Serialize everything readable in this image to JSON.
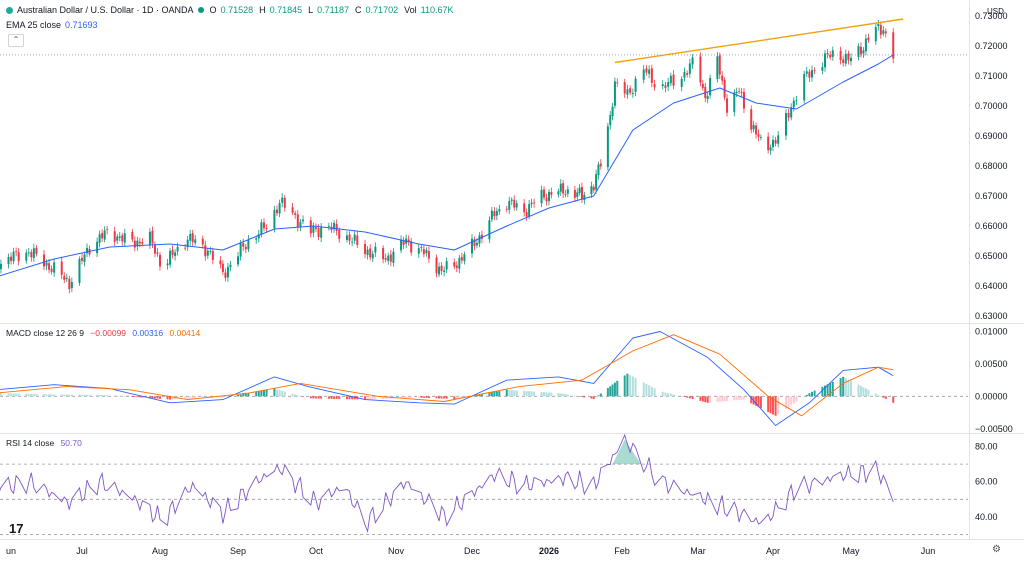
{
  "header": {
    "symbol_title": "Australian Dollar / U.S. Dollar · 1D · OANDA",
    "open_label": "O",
    "open": "0.71528",
    "high_label": "H",
    "high": "0.71845",
    "low_label": "L",
    "low": "0.71187",
    "close_label": "C",
    "close": "0.71702",
    "vol_label": "Vol",
    "vol": "110.67K",
    "ema_label": "EMA 25 close",
    "ema_value": "0.71693"
  },
  "currency": "USD",
  "colors": {
    "up": "#089981",
    "down": "#f23645",
    "ema": "#2962ff",
    "trendline": "#f0a30a",
    "macd": "#2962ff",
    "signal": "#ff6d00",
    "rsi": "#7e57c2"
  },
  "macd_title": {
    "label": "MACD close 12 26 9",
    "hist": "−0.00099",
    "macd": "0.00316",
    "signal": "0.00414"
  },
  "rsi_title": {
    "label": "RSI 14 close",
    "value": "50.70"
  },
  "chart_data": [
    {
      "type": "candlestick",
      "x_ticks": [
        "un",
        "Jul",
        "Aug",
        "Sep",
        "Oct",
        "Nov",
        "Dec",
        "2026",
        "Feb",
        "Mar",
        "Apr",
        "May",
        "Jun"
      ],
      "y_ticks": [
        "0.73000",
        "0.72000",
        "0.71000",
        "0.70000",
        "0.69000",
        "0.68000",
        "0.67000",
        "0.66000",
        "0.65000",
        "0.64000",
        "0.63000"
      ],
      "ylim": [
        0.628,
        0.732
      ],
      "last_price_line": 0.71702,
      "close_path": [
        [
          "2025-05-28",
          0.6475
        ],
        [
          "2025-06-10",
          0.6515
        ],
        [
          "2025-06-20",
          0.6455
        ],
        [
          "2025-06-26",
          0.641
        ],
        [
          "2025-07-05",
          0.6545
        ],
        [
          "2025-07-12",
          0.658
        ],
        [
          "2025-07-20",
          0.6545
        ],
        [
          "2025-07-28",
          0.6555
        ],
        [
          "2025-08-02",
          0.6465
        ],
        [
          "2025-08-12",
          0.656
        ],
        [
          "2025-08-20",
          0.652
        ],
        [
          "2025-08-26",
          0.644
        ],
        [
          "2025-09-05",
          0.655
        ],
        [
          "2025-09-12",
          0.66
        ],
        [
          "2025-09-17",
          0.668
        ],
        [
          "2025-09-22",
          0.664
        ],
        [
          "2025-09-29",
          0.658
        ],
        [
          "2025-10-05",
          0.66
        ],
        [
          "2025-10-12",
          0.657
        ],
        [
          "2025-10-20",
          0.652
        ],
        [
          "2025-10-28",
          0.649
        ],
        [
          "2025-11-05",
          0.655
        ],
        [
          "2025-11-12",
          0.651
        ],
        [
          "2025-11-19",
          0.645
        ],
        [
          "2025-11-24",
          0.647
        ],
        [
          "2025-12-02",
          0.654
        ],
        [
          "2025-12-10",
          0.664
        ],
        [
          "2025-12-15",
          0.668
        ],
        [
          "2025-12-22",
          0.665
        ],
        [
          "2025-12-29",
          0.67
        ],
        [
          "2026-01-08",
          0.672
        ],
        [
          "2026-01-15",
          0.67
        ],
        [
          "2026-01-20",
          0.674
        ],
        [
          "2026-01-24",
          0.683
        ],
        [
          "2026-01-29",
          0.707
        ],
        [
          "2026-02-03",
          0.704
        ],
        [
          "2026-02-09",
          0.712
        ],
        [
          "2026-02-15",
          0.706
        ],
        [
          "2026-02-22",
          0.709
        ],
        [
          "2026-02-28",
          0.715
        ],
        [
          "2026-03-04",
          0.703
        ],
        [
          "2026-03-09",
          0.715
        ],
        [
          "2026-03-13",
          0.7
        ],
        [
          "2026-03-18",
          0.705
        ],
        [
          "2026-03-23",
          0.694
        ],
        [
          "2026-03-28",
          0.686
        ],
        [
          "2026-04-03",
          0.689
        ],
        [
          "2026-04-08",
          0.7
        ],
        [
          "2026-04-13",
          0.709
        ],
        [
          "2026-04-20",
          0.715
        ],
        [
          "2026-04-25",
          0.718
        ],
        [
          "2026-04-30",
          0.715
        ],
        [
          "2026-05-06",
          0.72
        ],
        [
          "2026-05-10",
          0.725
        ],
        [
          "2026-05-14",
          0.726
        ],
        [
          "2026-05-18",
          0.717
        ]
      ],
      "ema_path": [
        [
          "2025-05-28",
          0.643
        ],
        [
          "2025-06-20",
          0.649
        ],
        [
          "2025-07-12",
          0.653
        ],
        [
          "2025-08-05",
          0.654
        ],
        [
          "2025-08-26",
          0.652
        ],
        [
          "2025-09-15",
          0.659
        ],
        [
          "2025-09-30",
          0.66
        ],
        [
          "2025-10-20",
          0.658
        ],
        [
          "2025-11-10",
          0.654
        ],
        [
          "2025-11-24",
          0.652
        ],
        [
          "2025-12-15",
          0.66
        ],
        [
          "2026-01-01",
          0.666
        ],
        [
          "2026-01-20",
          0.67
        ],
        [
          "2026-02-05",
          0.692
        ],
        [
          "2026-02-20",
          0.701
        ],
        [
          "2026-03-10",
          0.706
        ],
        [
          "2026-03-25",
          0.701
        ],
        [
          "2026-04-10",
          0.699
        ],
        [
          "2026-04-28",
          0.708
        ],
        [
          "2026-05-12",
          0.714
        ],
        [
          "2026-05-18",
          0.717
        ]
      ],
      "trendline": [
        [
          "2026-01-29",
          0.7145
        ],
        [
          "2026-05-22",
          0.729
        ]
      ]
    },
    {
      "type": "line",
      "name": "MACD",
      "y_ticks": [
        "0.01000",
        "0.00500",
        "0.00000",
        "−0.00500"
      ],
      "ylim": [
        -0.0055,
        0.011
      ],
      "macd_path": [
        [
          "2025-05-28",
          0.001
        ],
        [
          "2025-06-20",
          0.0018
        ],
        [
          "2025-07-12",
          0.0012
        ],
        [
          "2025-08-05",
          -0.001
        ],
        [
          "2025-08-26",
          -0.0005
        ],
        [
          "2025-09-15",
          0.003
        ],
        [
          "2025-09-28",
          0.0015
        ],
        [
          "2025-10-20",
          -0.0005
        ],
        [
          "2025-11-10",
          -0.001
        ],
        [
          "2025-11-24",
          -0.0012
        ],
        [
          "2025-12-15",
          0.0025
        ],
        [
          "2026-01-05",
          0.003
        ],
        [
          "2026-01-20",
          0.002
        ],
        [
          "2026-02-05",
          0.009
        ],
        [
          "2026-02-15",
          0.01
        ],
        [
          "2026-03-05",
          0.006
        ],
        [
          "2026-03-20",
          0.001
        ],
        [
          "2026-04-02",
          -0.0045
        ],
        [
          "2026-04-15",
          -0.001
        ],
        [
          "2026-04-28",
          0.004
        ],
        [
          "2026-05-12",
          0.0045
        ],
        [
          "2026-05-18",
          0.0032
        ]
      ],
      "signal_path": [
        [
          "2025-05-28",
          0.0005
        ],
        [
          "2025-06-25",
          0.0015
        ],
        [
          "2025-07-20",
          0.001
        ],
        [
          "2025-08-12",
          -0.0005
        ],
        [
          "2025-09-05",
          0.0005
        ],
        [
          "2025-09-25",
          0.002
        ],
        [
          "2025-10-25",
          0.0
        ],
        [
          "2025-11-20",
          -0.0008
        ],
        [
          "2025-12-20",
          0.0015
        ],
        [
          "2026-01-15",
          0.0025
        ],
        [
          "2026-02-05",
          0.007
        ],
        [
          "2026-02-20",
          0.0095
        ],
        [
          "2026-03-10",
          0.0065
        ],
        [
          "2026-03-30",
          0.0
        ],
        [
          "2026-04-12",
          -0.003
        ],
        [
          "2026-04-28",
          0.002
        ],
        [
          "2026-05-12",
          0.0045
        ],
        [
          "2026-05-18",
          0.0041
        ]
      ],
      "histogram_path": [
        [
          "2025-05-28",
          0.0005
        ],
        [
          "2025-06-20",
          0.0003
        ],
        [
          "2025-07-12",
          0.0002
        ],
        [
          "2025-08-05",
          -0.0005
        ],
        [
          "2025-08-26",
          -0.0002
        ],
        [
          "2025-09-15",
          0.0012
        ],
        [
          "2025-09-28",
          -0.0003
        ],
        [
          "2025-10-20",
          -0.0005
        ],
        [
          "2025-11-10",
          -0.0002
        ],
        [
          "2025-11-24",
          -0.0004
        ],
        [
          "2025-12-15",
          0.001
        ],
        [
          "2026-01-05",
          0.0005
        ],
        [
          "2026-01-20",
          -0.0004
        ],
        [
          "2026-02-03",
          0.0035
        ],
        [
          "2026-02-15",
          0.0008
        ],
        [
          "2026-03-05",
          -0.001
        ],
        [
          "2026-03-20",
          -0.0005
        ],
        [
          "2026-04-02",
          -0.003
        ],
        [
          "2026-04-15",
          0.0005
        ],
        [
          "2026-04-28",
          0.003
        ],
        [
          "2026-05-12",
          0.0002
        ],
        [
          "2026-05-18",
          -0.001
        ]
      ]
    },
    {
      "type": "line",
      "name": "RSI",
      "y_ticks": [
        "80.00",
        "60.00",
        "40.00"
      ],
      "ylim": [
        28,
        86
      ],
      "bands": [
        30,
        50,
        70
      ],
      "rsi_path": [
        [
          "2025-05-28",
          56
        ],
        [
          "2025-06-10",
          60
        ],
        [
          "2025-06-26",
          48
        ],
        [
          "2025-07-08",
          60
        ],
        [
          "2025-07-20",
          52
        ],
        [
          "2025-08-02",
          38
        ],
        [
          "2025-08-14",
          58
        ],
        [
          "2025-08-26",
          42
        ],
        [
          "2025-09-10",
          62
        ],
        [
          "2025-09-17",
          68
        ],
        [
          "2025-10-01",
          48
        ],
        [
          "2025-10-12",
          58
        ],
        [
          "2025-10-20",
          36
        ],
        [
          "2025-11-05",
          60
        ],
        [
          "2025-11-20",
          40
        ],
        [
          "2025-12-10",
          64
        ],
        [
          "2025-12-22",
          58
        ],
        [
          "2026-01-08",
          62
        ],
        [
          "2026-01-20",
          58
        ],
        [
          "2026-02-02",
          84
        ],
        [
          "2026-02-15",
          60
        ],
        [
          "2026-03-04",
          50
        ],
        [
          "2026-03-15",
          44
        ],
        [
          "2026-03-28",
          36
        ],
        [
          "2026-04-10",
          56
        ],
        [
          "2026-04-28",
          64
        ],
        [
          "2026-05-12",
          66
        ],
        [
          "2026-05-18",
          51
        ]
      ]
    }
  ]
}
